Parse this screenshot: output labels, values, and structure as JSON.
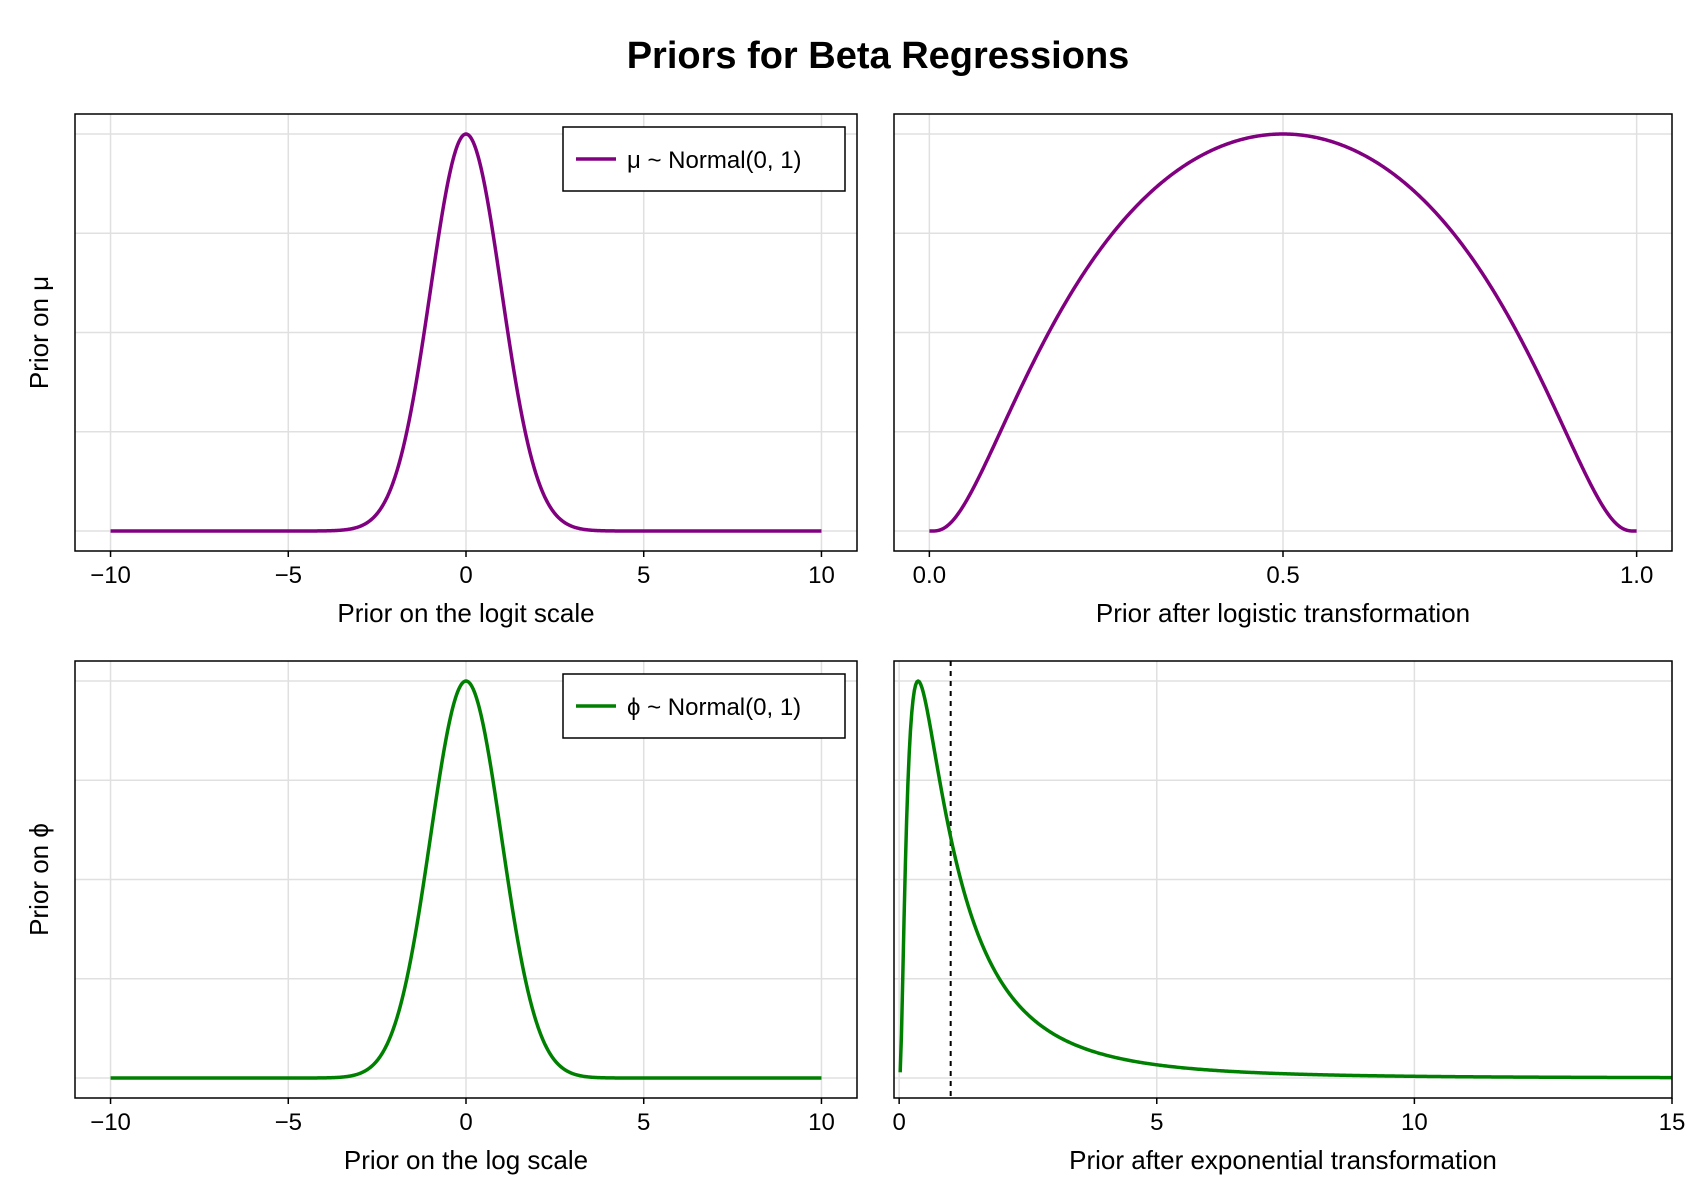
{
  "title": "Priors for Beta Regressions",
  "colors": {
    "mu": "#800080",
    "phi": "#008000",
    "grid": "#e0e0e0",
    "axis": "#000000"
  },
  "chart_data": [
    {
      "type": "line",
      "panel": "top-left",
      "function": "normal_pdf",
      "mean": 0,
      "sd": 1,
      "x_range": [
        -10,
        10
      ],
      "xlim": [
        -11,
        11
      ],
      "xticks": [
        -10,
        -5,
        0,
        5,
        10
      ],
      "xtick_labels": [
        "−10",
        "−5",
        "0",
        "5",
        "10"
      ],
      "xlabel": "Prior on the logit scale",
      "ylabel": "Prior on μ",
      "grid": true,
      "legend": {
        "position": "top-right",
        "entries": [
          {
            "name": "μ ~ Normal(0, 1)",
            "color": "#800080"
          }
        ]
      },
      "series": [
        {
          "name": "μ ~ Normal(0, 1)",
          "color": "#800080"
        }
      ]
    },
    {
      "type": "line",
      "panel": "top-right",
      "function": "logit_normal_pdf",
      "mean": 0,
      "sd": 1,
      "x_range": [
        0,
        1
      ],
      "xlim": [
        -0.05,
        1.05
      ],
      "xticks": [
        0,
        0.5,
        1
      ],
      "xtick_labels": [
        "0.0",
        "0.5",
        "1.0"
      ],
      "xlabel": "Prior after logistic transformation",
      "ylabel": "",
      "grid": true,
      "series": [
        {
          "name": "",
          "color": "#800080"
        }
      ]
    },
    {
      "type": "line",
      "panel": "bottom-left",
      "function": "normal_pdf",
      "mean": 0,
      "sd": 1,
      "x_range": [
        -10,
        10
      ],
      "xlim": [
        -11,
        11
      ],
      "xticks": [
        -10,
        -5,
        0,
        5,
        10
      ],
      "xtick_labels": [
        "−10",
        "−5",
        "0",
        "5",
        "10"
      ],
      "xlabel": "Prior on the log scale",
      "ylabel": "Prior on ϕ",
      "grid": true,
      "legend": {
        "position": "top-right",
        "entries": [
          {
            "name": "ϕ ~ Normal(0, 1)",
            "color": "#008000"
          }
        ]
      },
      "series": [
        {
          "name": "ϕ ~ Normal(0, 1)",
          "color": "#008000"
        }
      ]
    },
    {
      "type": "line",
      "panel": "bottom-right",
      "function": "lognormal_pdf",
      "mean": 0,
      "sd": 1,
      "x_range": [
        0.02,
        15
      ],
      "xlim": [
        -0.1,
        15
      ],
      "xticks": [
        0,
        5,
        10,
        15
      ],
      "xtick_labels": [
        "0",
        "5",
        "10",
        "15"
      ],
      "xlabel": "Prior after exponential transformation",
      "ylabel": "",
      "grid": true,
      "vline": {
        "x": 1,
        "style": "dashed",
        "color": "#000000"
      },
      "series": [
        {
          "name": "",
          "color": "#008000"
        }
      ]
    }
  ]
}
